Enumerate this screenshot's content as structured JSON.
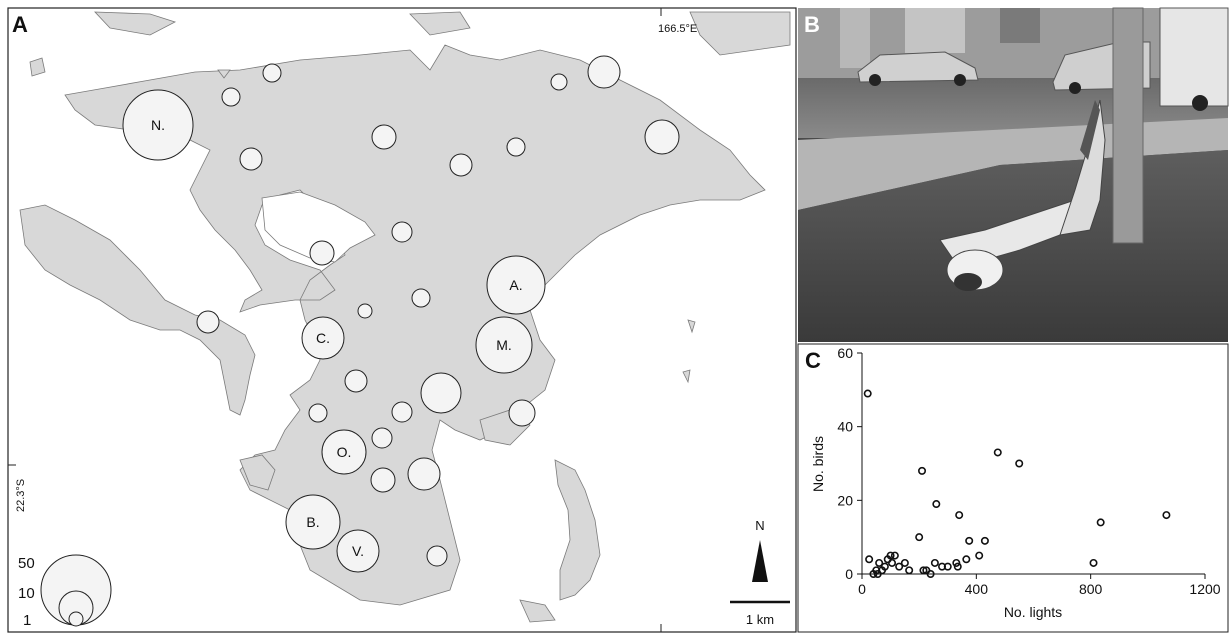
{
  "panels": {
    "a": {
      "letter": "A",
      "lon_label": "166.5°E",
      "lat_label": "22.3°S",
      "labeled_sites": [
        "N.",
        "A.",
        "C.",
        "M.",
        "O.",
        "B.",
        "V."
      ],
      "size_legend": [
        "50",
        "10",
        "1"
      ],
      "north_label": "N",
      "scale_label": "1 km",
      "colors": {
        "land": "#d8d8d8",
        "circle_fill": "#f4f4f4",
        "stroke": "#222222"
      }
    },
    "b": {
      "letter": "B"
    },
    "c": {
      "letter": "C"
    }
  },
  "chart_data": {
    "type": "scatter",
    "xlabel": "No. lights",
    "ylabel": "No. birds",
    "xlim": [
      0,
      1200
    ],
    "ylim": [
      0,
      60
    ],
    "xticks": [
      0,
      400,
      800,
      1200
    ],
    "yticks": [
      0,
      20,
      40,
      60
    ],
    "grid": false,
    "points": [
      [
        20,
        49
      ],
      [
        25,
        4
      ],
      [
        40,
        0
      ],
      [
        50,
        1
      ],
      [
        55,
        0
      ],
      [
        60,
        3
      ],
      [
        70,
        1
      ],
      [
        80,
        2
      ],
      [
        90,
        4
      ],
      [
        100,
        5
      ],
      [
        105,
        3
      ],
      [
        115,
        5
      ],
      [
        130,
        2
      ],
      [
        150,
        3
      ],
      [
        165,
        1
      ],
      [
        200,
        10
      ],
      [
        210,
        28
      ],
      [
        215,
        1
      ],
      [
        225,
        1
      ],
      [
        240,
        0
      ],
      [
        255,
        3
      ],
      [
        260,
        19
      ],
      [
        280,
        2
      ],
      [
        300,
        2
      ],
      [
        330,
        3
      ],
      [
        335,
        2
      ],
      [
        340,
        16
      ],
      [
        365,
        4
      ],
      [
        375,
        9
      ],
      [
        410,
        5
      ],
      [
        430,
        9
      ],
      [
        475,
        33
      ],
      [
        550,
        30
      ],
      [
        810,
        3
      ],
      [
        835,
        14
      ],
      [
        1065,
        16
      ]
    ]
  }
}
